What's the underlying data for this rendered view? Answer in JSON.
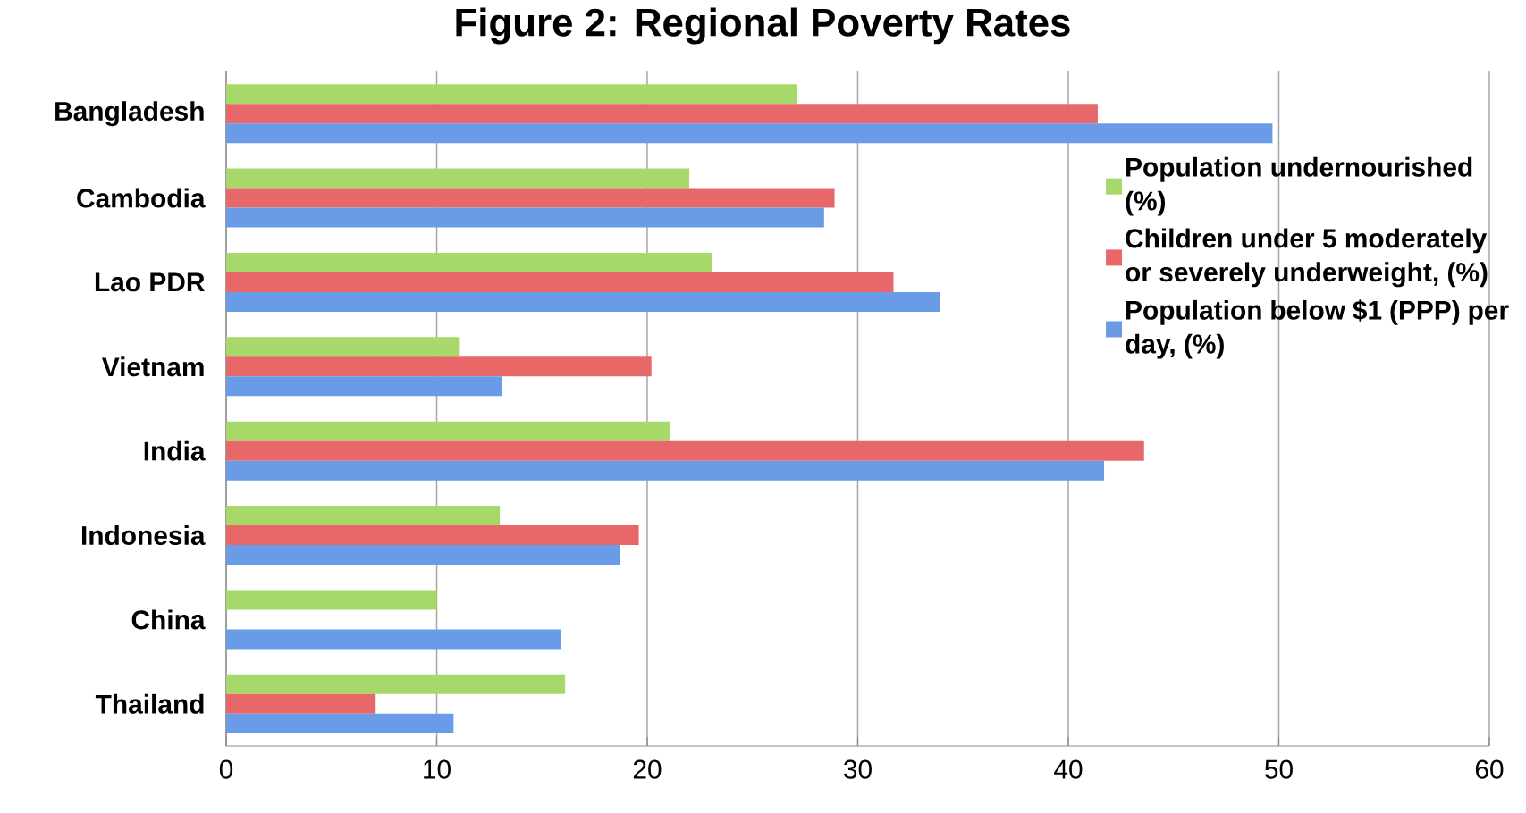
{
  "chart_data": {
    "type": "bar",
    "orientation": "horizontal",
    "title": "Figure 2: Regional Poverty Rates",
    "categories": [
      "Bangladesh",
      "Cambodia",
      "Lao PDR",
      "Vietnam",
      "India",
      "Indonesia",
      "China",
      "Thailand"
    ],
    "series": [
      {
        "name": "Population undernourished (%)",
        "color": "#a6d96a",
        "values": [
          27.1,
          22.0,
          23.1,
          11.1,
          21.1,
          13.0,
          10.0,
          16.1
        ]
      },
      {
        "name": "Children under 5 moderately or severely underweight, (%)",
        "color": "#e8686a",
        "values": [
          41.4,
          28.9,
          31.7,
          20.2,
          43.6,
          19.6,
          null,
          7.1
        ]
      },
      {
        "name": "Population below $1 (PPP) per day, (%)",
        "color": "#6a9be6",
        "values": [
          49.7,
          28.4,
          33.9,
          13.1,
          41.7,
          18.7,
          15.9,
          10.8
        ]
      }
    ],
    "xlim": [
      0,
      60
    ],
    "xticks": [
      0,
      10,
      20,
      30,
      40,
      50,
      60
    ],
    "grid": "x",
    "legend": "right"
  }
}
